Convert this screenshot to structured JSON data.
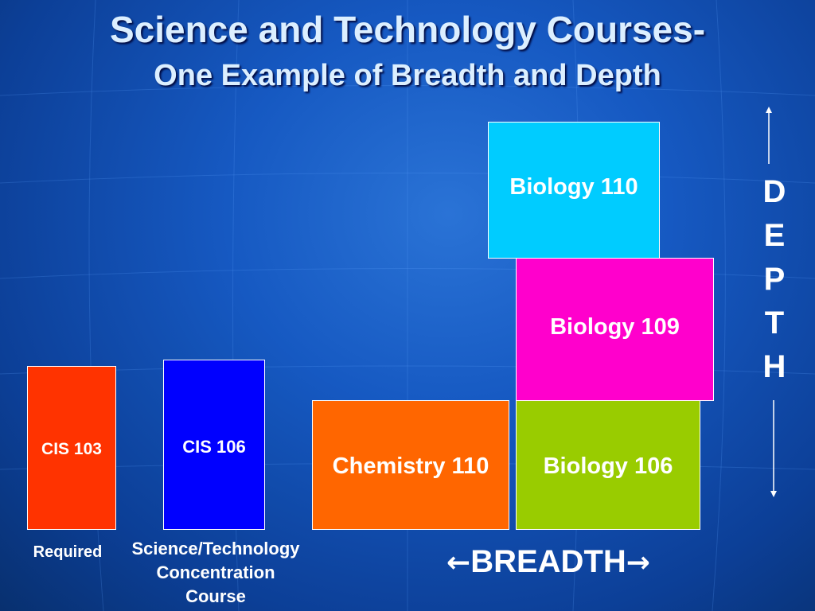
{
  "slide": {
    "title_line1": "Science and Technology Courses-",
    "title_line2": "One Example of Breadth and Depth"
  },
  "courses": [
    {
      "label": "CIS 103",
      "color": "#ff3300"
    },
    {
      "label": "CIS 106",
      "color": "#0000ff"
    },
    {
      "label": "Chemistry 110",
      "color": "#ff6600"
    },
    {
      "label": "Biology 106",
      "color": "#99cc00"
    },
    {
      "label": "Biology 109",
      "color": "#ff00cc"
    },
    {
      "label": "Biology 110",
      "color": "#00ccff"
    }
  ],
  "captions": {
    "required": "Required",
    "concentration": [
      "Science/Technology",
      "Concentration",
      "Course"
    ]
  },
  "depth": {
    "letters": [
      "D",
      "E",
      "P",
      "T",
      "H"
    ]
  },
  "breadth": {
    "left_arrow": "←",
    "label": "BREADTH",
    "right_arrow": "→"
  }
}
